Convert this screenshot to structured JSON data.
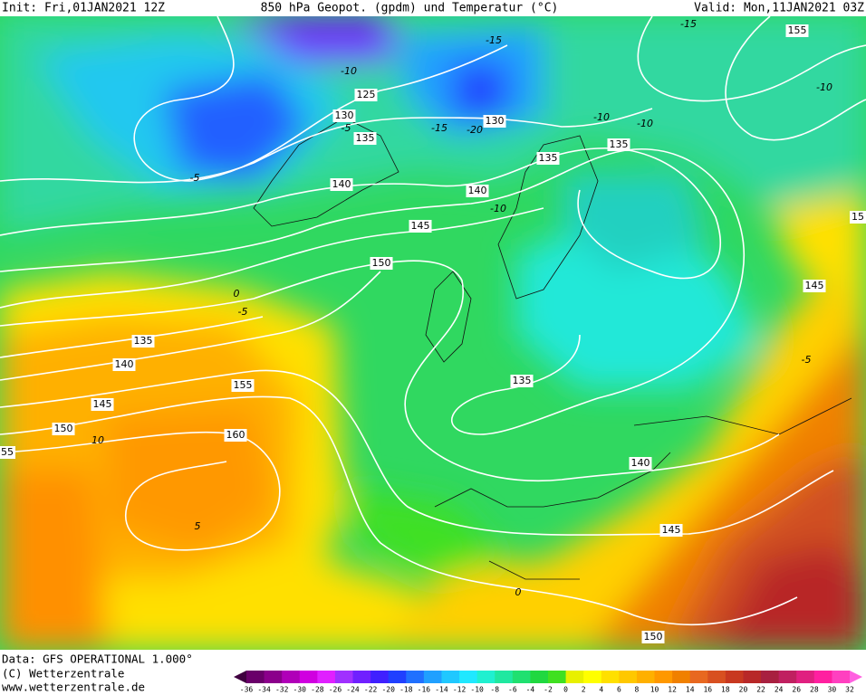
{
  "header": {
    "init": "Init: Fri,01JAN2021 12Z",
    "title": "850 hPa Geopot. (gpdm) und Temperatur (°C)",
    "valid": "Valid: Mon,11JAN2021 03Z"
  },
  "geopotential_labels": [
    "155",
    "125",
    "130",
    "135",
    "130",
    "135",
    "135",
    "140",
    "140",
    "15",
    "145",
    "150",
    "145",
    "135",
    "140",
    "145",
    "155",
    "150",
    "160",
    "55",
    "135",
    "140",
    "145",
    "150"
  ],
  "temperature_labels": [
    "-15",
    "-10",
    "-5",
    "-15",
    "-20",
    "-10",
    "-10",
    "-10",
    "-15",
    "-10",
    "-5",
    "0",
    "-5",
    "10",
    "5",
    "-5",
    "0"
  ],
  "footer": {
    "data": "Data: GFS OPERATIONAL 1.000°",
    "copyright": "(C) Wetterzentrale",
    "url": "www.wetterzentrale.de"
  },
  "colorbar": {
    "labels": [
      -36,
      -34,
      -32,
      -30,
      -28,
      -26,
      -24,
      -22,
      -20,
      -18,
      -16,
      -14,
      -12,
      -10,
      -8,
      -6,
      -4,
      -2,
      0,
      2,
      4,
      6,
      8,
      10,
      12,
      14,
      16,
      18,
      20,
      22,
      24,
      26,
      28,
      30,
      32
    ],
    "colors": [
      "#400040",
      "#6a006a",
      "#8b008b",
      "#b000b8",
      "#d000e0",
      "#e020ff",
      "#a030ff",
      "#7020ff",
      "#4020ff",
      "#2040ff",
      "#2070ff",
      "#20a0ff",
      "#20c8ff",
      "#20e8ff",
      "#20f0d0",
      "#20e8a0",
      "#20e070",
      "#20d840",
      "#40e020",
      "#e8f000",
      "#ffff00",
      "#ffe000",
      "#ffc800",
      "#ffb000",
      "#ff9800",
      "#f08000",
      "#e86820",
      "#d85020",
      "#c83820",
      "#b82828",
      "#a82040",
      "#c02060",
      "#e02080",
      "#ff20a0",
      "#ff40c0",
      "#ff60e0"
    ]
  }
}
